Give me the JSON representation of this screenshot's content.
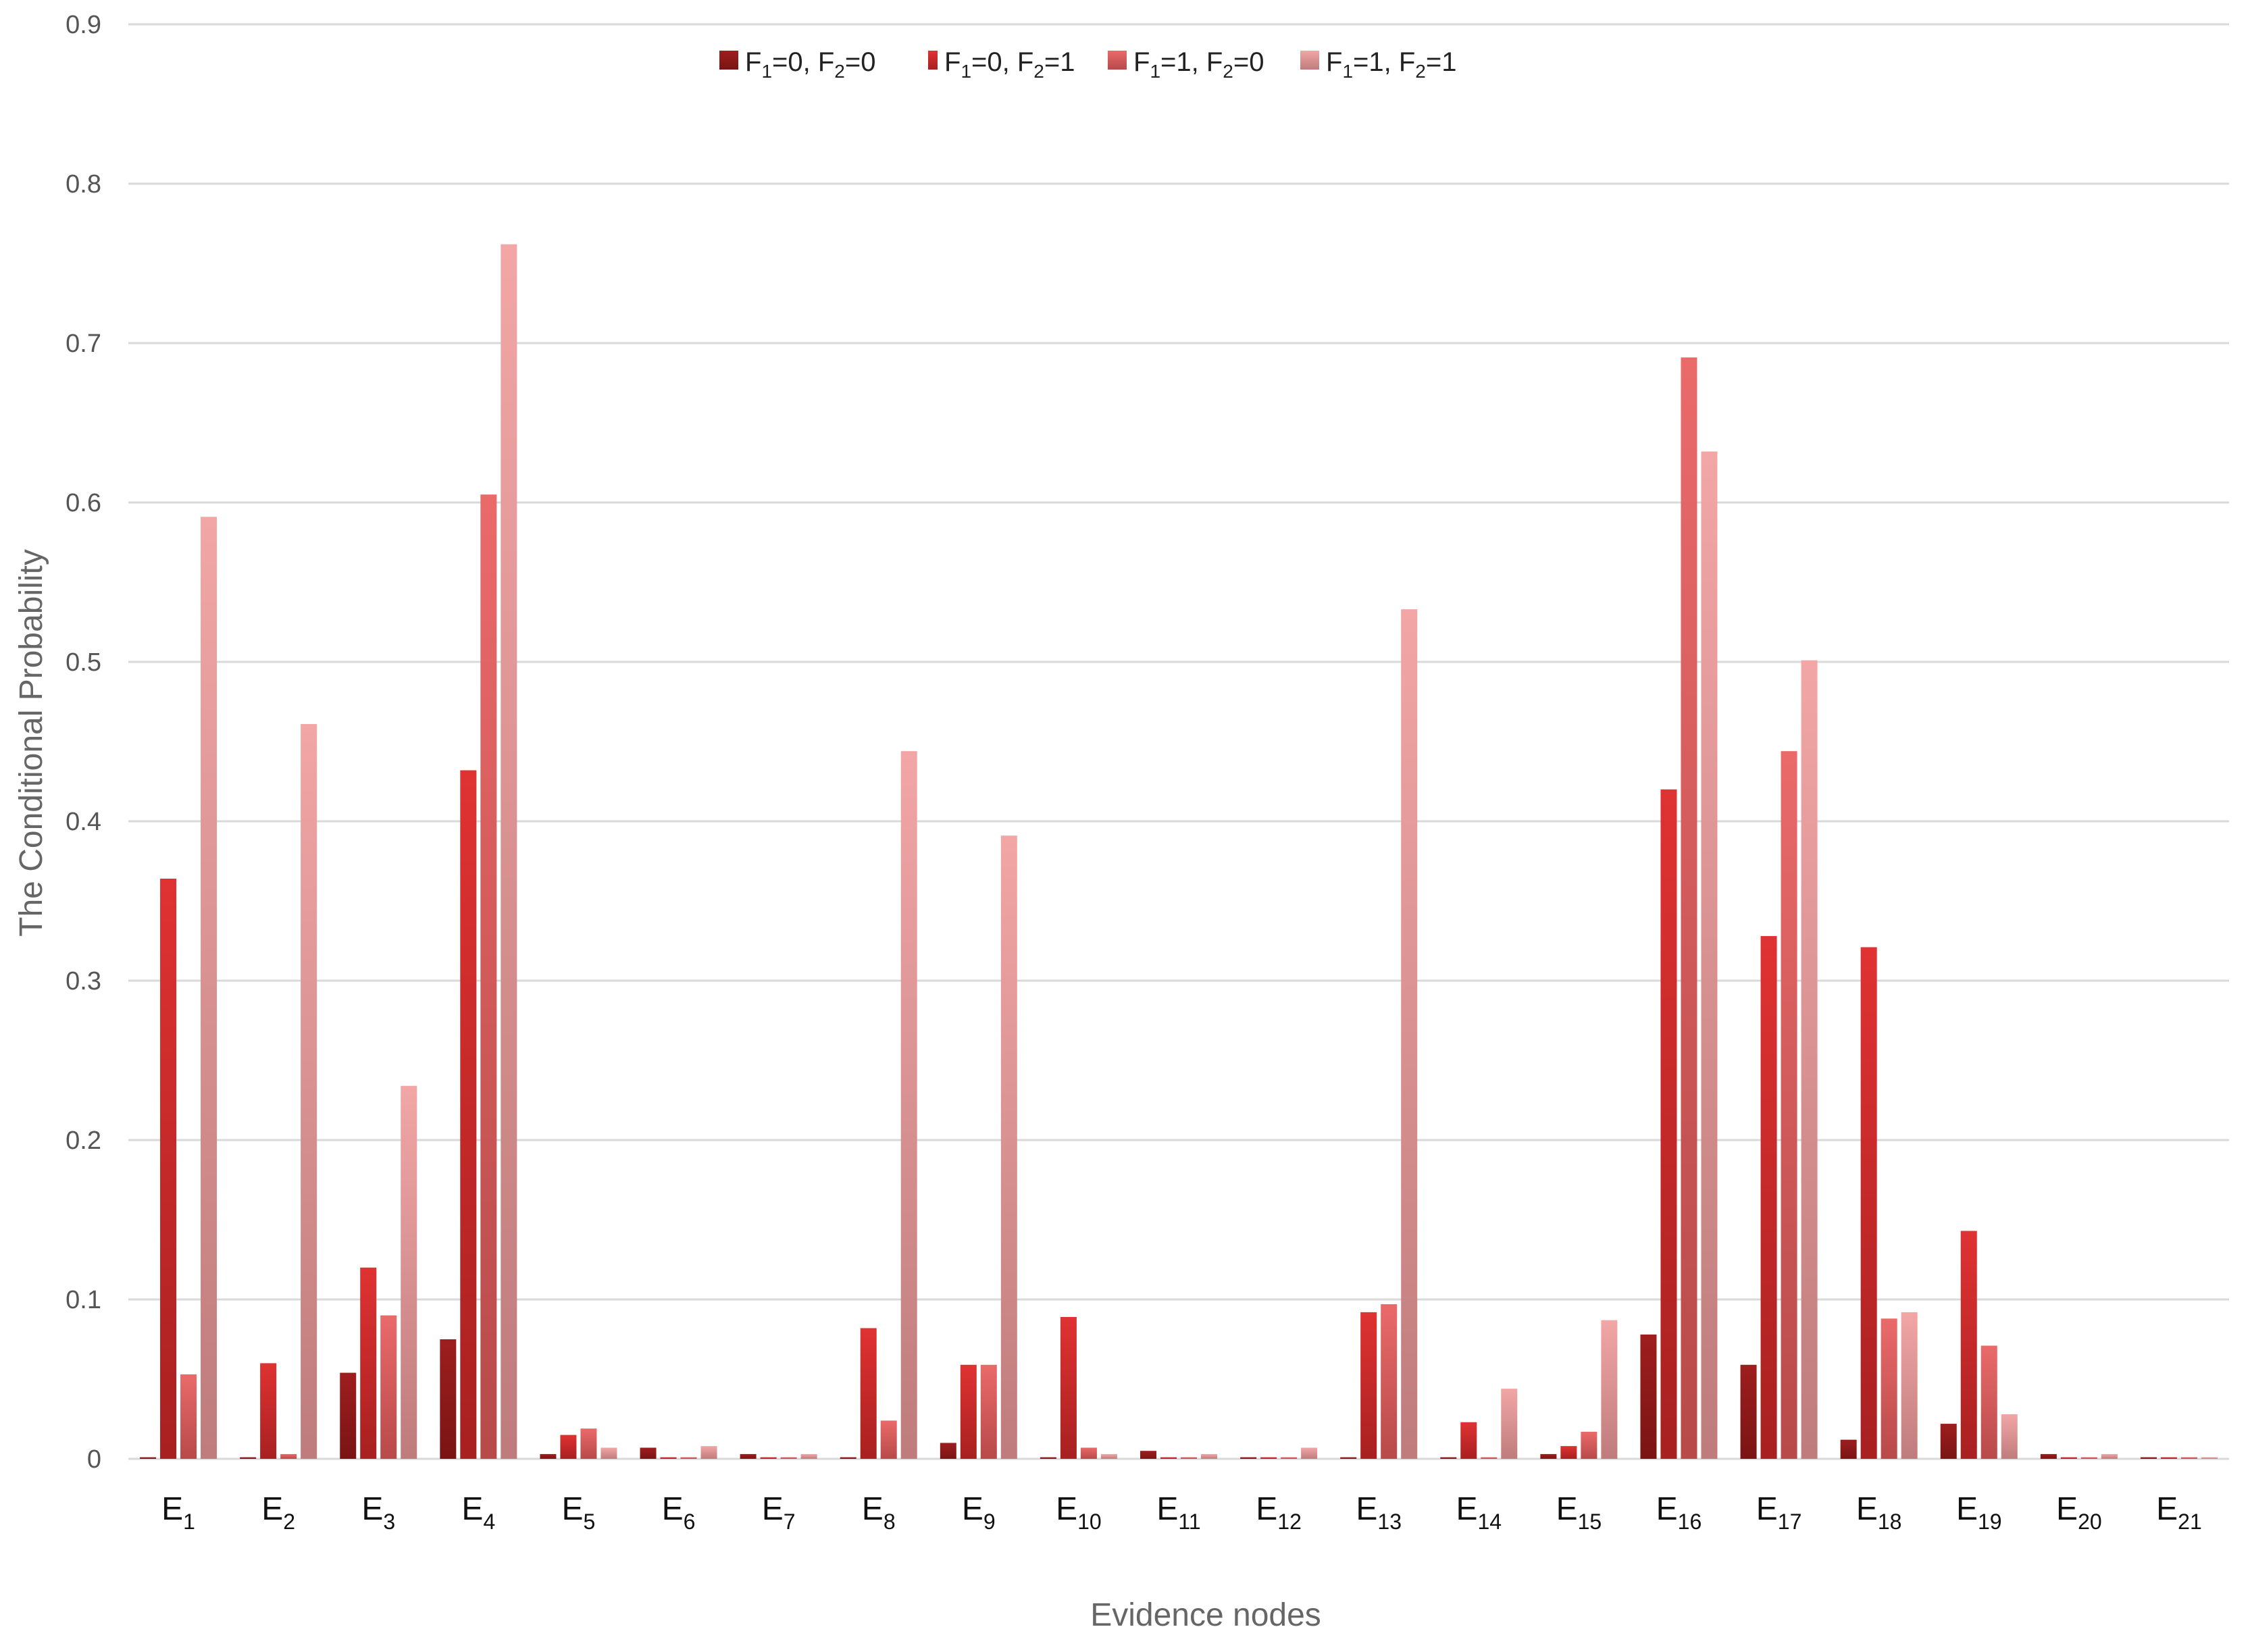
{
  "chart_data": {
    "type": "bar",
    "title": "",
    "xlabel": "Evidence nodes",
    "ylabel": "The Conditional Probability",
    "ylim": [
      0,
      0.9
    ],
    "yticks": [
      "0",
      "0.1",
      "0.2",
      "0.3",
      "0.4",
      "0.5",
      "0.6",
      "0.7",
      "0.8",
      "0.9"
    ],
    "grid": true,
    "legend_position": "top",
    "categories": [
      {
        "base": "E",
        "sub": "1"
      },
      {
        "base": "E",
        "sub": "2"
      },
      {
        "base": "E",
        "sub": "3"
      },
      {
        "base": "E",
        "sub": "4"
      },
      {
        "base": "E",
        "sub": "5"
      },
      {
        "base": "E",
        "sub": "6"
      },
      {
        "base": "E",
        "sub": "7"
      },
      {
        "base": "E",
        "sub": "8"
      },
      {
        "base": "E",
        "sub": "9"
      },
      {
        "base": "E",
        "sub": "10"
      },
      {
        "base": "E",
        "sub": "11"
      },
      {
        "base": "E",
        "sub": "12"
      },
      {
        "base": "E",
        "sub": "13"
      },
      {
        "base": "E",
        "sub": "14"
      },
      {
        "base": "E",
        "sub": "15"
      },
      {
        "base": "E",
        "sub": "16"
      },
      {
        "base": "E",
        "sub": "17"
      },
      {
        "base": "E",
        "sub": "18"
      },
      {
        "base": "E",
        "sub": "19"
      },
      {
        "base": "E",
        "sub": "20"
      },
      {
        "base": "E",
        "sub": "21"
      }
    ],
    "series": [
      {
        "name_parts": [
          [
            "F",
            "1",
            "=0, "
          ],
          [
            "F",
            "2",
            "=0"
          ]
        ],
        "color_top": "#9e1e1e",
        "color_bottom": "#7a1414",
        "values": [
          0.001,
          0.001,
          0.054,
          0.075,
          0.003,
          0.007,
          0.003,
          0.001,
          0.01,
          0.001,
          0.005,
          0.001,
          0.001,
          0.001,
          0.003,
          0.078,
          0.059,
          0.012,
          0.022,
          0.003,
          0.001
        ]
      },
      {
        "name_parts": [
          [
            "F",
            "1",
            "=0, "
          ],
          [
            "F",
            "2",
            "=1"
          ]
        ],
        "color_top": "#e03232",
        "color_bottom": "#a82020",
        "values": [
          0.364,
          0.06,
          0.12,
          0.432,
          0.015,
          0.001,
          0.001,
          0.082,
          0.059,
          0.089,
          0.001,
          0.001,
          0.092,
          0.023,
          0.008,
          0.42,
          0.328,
          0.321,
          0.143,
          0.001,
          0.001
        ]
      },
      {
        "name_parts": [
          [
            "F",
            "1",
            "=1, "
          ],
          [
            "F",
            "2",
            "=0"
          ]
        ],
        "color_top": "#ea6a6a",
        "color_bottom": "#b84a4a",
        "values": [
          0.053,
          0.003,
          0.09,
          0.605,
          0.019,
          0.001,
          0.001,
          0.024,
          0.059,
          0.007,
          0.001,
          0.001,
          0.097,
          0.001,
          0.017,
          0.691,
          0.444,
          0.088,
          0.071,
          0.001,
          0.001
        ]
      },
      {
        "name_parts": [
          [
            "F",
            "1",
            "=1, "
          ],
          [
            "F",
            "2",
            "=1"
          ]
        ],
        "color_top": "#f2a6a6",
        "color_bottom": "#bf7c7c",
        "values": [
          0.591,
          0.461,
          0.234,
          0.762,
          0.007,
          0.008,
          0.003,
          0.444,
          0.391,
          0.003,
          0.003,
          0.007,
          0.533,
          0.044,
          0.087,
          0.632,
          0.501,
          0.092,
          0.028,
          0.003,
          0.001
        ]
      }
    ]
  }
}
